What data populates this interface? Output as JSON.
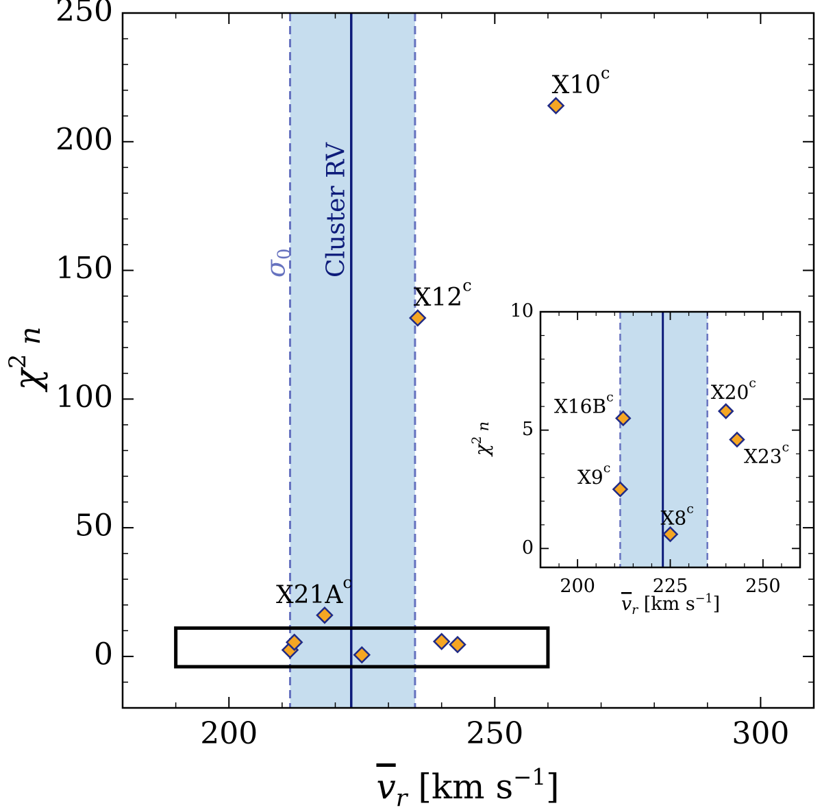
{
  "chart_data": [
    {
      "type": "scatter",
      "panel": "main",
      "xlabel": "v̄r [km s−1]",
      "ylabel": "χ²n",
      "xlim": [
        180,
        310
      ],
      "ylim": [
        -20,
        250
      ],
      "xticks": [
        200,
        250,
        300
      ],
      "yticks": [
        0,
        50,
        100,
        150,
        200,
        250
      ],
      "cluster_rv": 223,
      "cluster_rv_label": "Cluster RV",
      "sigma_band": [
        211.5,
        235
      ],
      "sigma_label": "σ0",
      "inset_box": {
        "x": [
          190,
          260
        ],
        "y": [
          -4,
          11
        ]
      },
      "points": [
        {
          "x": 261.5,
          "y": 214,
          "label": "X10",
          "sup": "c"
        },
        {
          "x": 235.5,
          "y": 131.5,
          "label": "X12",
          "sup": "c"
        },
        {
          "x": 218,
          "y": 16,
          "label": "X21A",
          "sup": "c"
        },
        {
          "x": 211.5,
          "y": 2.5,
          "label": "",
          "sup": ""
        },
        {
          "x": 212.3,
          "y": 5.5,
          "label": "",
          "sup": ""
        },
        {
          "x": 225,
          "y": 0.6,
          "label": "",
          "sup": ""
        },
        {
          "x": 240,
          "y": 5.8,
          "label": "",
          "sup": ""
        },
        {
          "x": 243,
          "y": 4.6,
          "label": "",
          "sup": ""
        }
      ]
    },
    {
      "type": "scatter",
      "panel": "inset",
      "xlabel": "v̄r [km s−1]",
      "ylabel": "χ²n",
      "xlim": [
        190,
        260
      ],
      "ylim": [
        -0.8,
        10
      ],
      "xticks": [
        200,
        225,
        250
      ],
      "yticks": [
        0,
        5,
        10
      ],
      "cluster_rv": 223,
      "sigma_band": [
        211.5,
        235
      ],
      "points": [
        {
          "x": 212.3,
          "y": 5.5,
          "label": "X16B",
          "sup": "c"
        },
        {
          "x": 211.5,
          "y": 2.5,
          "label": "X9",
          "sup": "c"
        },
        {
          "x": 225,
          "y": 0.6,
          "label": "X8",
          "sup": "c"
        },
        {
          "x": 240,
          "y": 5.8,
          "label": "X20",
          "sup": "c"
        },
        {
          "x": 243,
          "y": 4.6,
          "label": "X23",
          "sup": "c"
        }
      ]
    }
  ],
  "colors": {
    "band_fill": "#c6ddee",
    "cluster_line": "#0d1b7a",
    "sigma_line": "#6672bf",
    "marker_fill": "#f5a623",
    "marker_edge": "#1f2a86"
  }
}
